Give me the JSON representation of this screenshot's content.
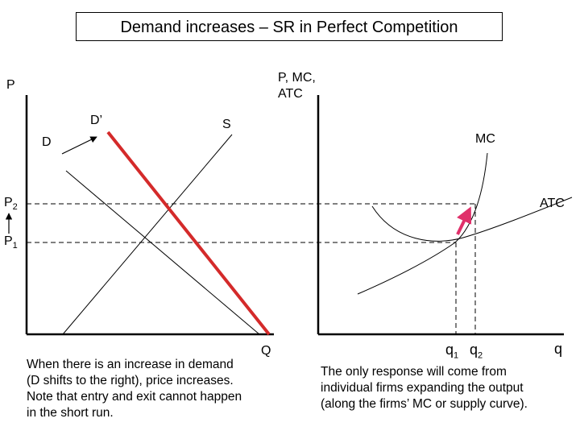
{
  "title": "Demand increases – SR in Perfect Competition",
  "market": {
    "y_axis_label": "P",
    "x_axis_label": "Q",
    "price_high": {
      "base": "P",
      "sub": "2"
    },
    "price_low": {
      "base": "P",
      "sub": "1"
    },
    "demand_label": "D",
    "demand_new_label": "D’",
    "supply_label": "S",
    "note": "When there is an increase in demand\n(D shifts to the right), price increases.\nNote that entry and exit cannot happen\nin the short run."
  },
  "firm": {
    "y_axis_label": "P, MC,\nATC",
    "x_axis_label": "q",
    "mc_label": "MC",
    "atc_label": "ATC",
    "q1": {
      "base": "q",
      "sub": "1"
    },
    "q2": {
      "base": "q",
      "sub": "2"
    },
    "note": "The only response will come from\nindividual firms expanding the output\n(along the firms’ MC or supply curve)."
  },
  "colors": {
    "new_demand": "#d42a2a",
    "arrow_firm": "#e0306a",
    "lines": "#000000"
  }
}
